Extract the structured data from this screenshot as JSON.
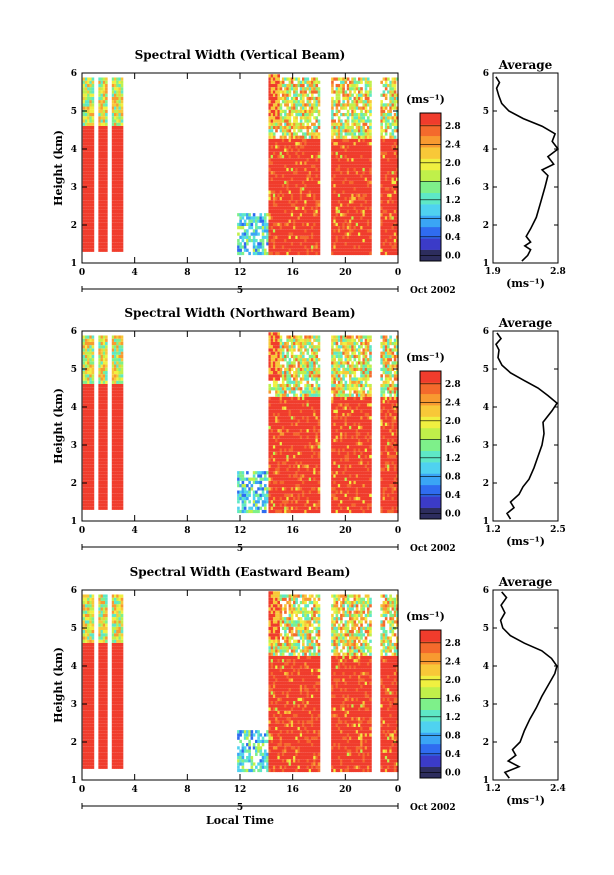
{
  "colorbar": {
    "unit_label": "(ms⁻¹)",
    "ticks": [
      "0.0",
      "0.4",
      "0.8",
      "1.2",
      "1.6",
      "2.0",
      "2.4",
      "2.8"
    ],
    "ticks_north": [
      "0.0",
      "0.4",
      "0.8",
      "1.2",
      "1.6",
      "2.0",
      "2.4",
      "2.8"
    ],
    "colors": [
      "#2d2d5e",
      "#3b3bc8",
      "#2f6cf0",
      "#3aa5f5",
      "#4fd2f0",
      "#5ee8c6",
      "#7ef08a",
      "#c0f04a",
      "#f0f040",
      "#f8c838",
      "#f89a30",
      "#f46a2c",
      "#f03c2c"
    ]
  },
  "chart_data": [
    {
      "type": "heatmap",
      "title": "Spectral Width (Vertical Beam)",
      "ylabel": "Height (km)",
      "xlabel": "",
      "y_ticks": [
        "1",
        "2",
        "3",
        "4",
        "5",
        "6"
      ],
      "ylim": [
        1,
        6
      ],
      "x_ticks": [
        "0",
        "4",
        "8",
        "12",
        "16",
        "20",
        "0"
      ],
      "xlim": [
        0,
        24
      ],
      "date_day": "5",
      "date_label": "Oct 2002",
      "colorbar_range": [
        0.0,
        2.8
      ],
      "data_blocks_hours": [
        [
          0.0,
          3.2
        ],
        [
          11.8,
          24.0
        ]
      ],
      "profile": {
        "title": "Average",
        "xlabel": "(ms⁻¹)",
        "x_ticks": [
          "1.9",
          "2.8"
        ],
        "xlim": [
          1.9,
          2.8
        ],
        "ylim": [
          1,
          6
        ],
        "y_ticks": [
          "1",
          "2",
          "3",
          "4",
          "5",
          "6"
        ],
        "heights": [
          1.05,
          1.2,
          1.35,
          1.45,
          1.55,
          1.7,
          1.9,
          2.2,
          2.6,
          3.0,
          3.3,
          3.45,
          3.6,
          3.8,
          4.0,
          4.2,
          4.4,
          4.6,
          4.8,
          5.0,
          5.2,
          5.4,
          5.6,
          5.75,
          5.9
        ],
        "values": [
          2.3,
          2.38,
          2.42,
          2.34,
          2.42,
          2.36,
          2.42,
          2.5,
          2.56,
          2.62,
          2.66,
          2.58,
          2.74,
          2.66,
          2.8,
          2.72,
          2.76,
          2.58,
          2.32,
          2.12,
          2.02,
          1.98,
          1.95,
          1.99,
          1.94
        ]
      }
    },
    {
      "type": "heatmap",
      "title": "Spectral Width (Northward Beam)",
      "ylabel": "Height (km)",
      "xlabel": "",
      "y_ticks": [
        "1",
        "2",
        "3",
        "4",
        "5",
        "6"
      ],
      "ylim": [
        1,
        6
      ],
      "x_ticks": [
        "0",
        "4",
        "8",
        "12",
        "16",
        "20",
        "0"
      ],
      "xlim": [
        0,
        24
      ],
      "date_day": "5",
      "date_label": "Oct 2002",
      "colorbar_range": [
        0.0,
        2.8
      ],
      "data_blocks_hours": [
        [
          0.0,
          3.2
        ],
        [
          11.8,
          24.0
        ]
      ],
      "profile": {
        "title": "Average",
        "xlabel": "(ms⁻¹)",
        "x_ticks": [
          "1.2",
          "2.5"
        ],
        "xlim": [
          1.2,
          2.5
        ],
        "ylim": [
          1,
          6
        ],
        "y_ticks": [
          "1",
          "2",
          "3",
          "4",
          "5",
          "6"
        ],
        "heights": [
          1.05,
          1.2,
          1.35,
          1.5,
          1.7,
          1.9,
          2.1,
          2.4,
          2.7,
          3.0,
          3.3,
          3.6,
          3.9,
          4.1,
          4.3,
          4.5,
          4.7,
          4.9,
          5.1,
          5.3,
          5.5,
          5.65,
          5.8,
          5.95
        ],
        "values": [
          1.55,
          1.48,
          1.62,
          1.55,
          1.72,
          1.8,
          1.92,
          2.02,
          2.1,
          2.18,
          2.22,
          2.2,
          2.38,
          2.48,
          2.3,
          2.1,
          1.82,
          1.55,
          1.38,
          1.3,
          1.32,
          1.26,
          1.36,
          1.28
        ]
      }
    },
    {
      "type": "heatmap",
      "title": "Spectral Width (Eastward Beam)",
      "ylabel": "Height (km)",
      "xlabel": "Local Time",
      "y_ticks": [
        "1",
        "2",
        "3",
        "4",
        "5",
        "6"
      ],
      "ylim": [
        1,
        6
      ],
      "x_ticks": [
        "0",
        "4",
        "8",
        "12",
        "16",
        "20",
        "0"
      ],
      "xlim": [
        0,
        24
      ],
      "date_day": "5",
      "date_label": "Oct 2002",
      "colorbar_range": [
        0.0,
        2.8
      ],
      "data_blocks_hours": [
        [
          0.0,
          3.2
        ],
        [
          11.8,
          24.0
        ]
      ],
      "profile": {
        "title": "Average",
        "xlabel": "(ms⁻¹)",
        "x_ticks": [
          "1.2",
          "2.4"
        ],
        "xlim": [
          1.2,
          2.4
        ],
        "ylim": [
          1,
          6
        ],
        "y_ticks": [
          "1",
          "2",
          "3",
          "4",
          "5",
          "6"
        ],
        "heights": [
          1.05,
          1.2,
          1.35,
          1.5,
          1.65,
          1.8,
          2.0,
          2.3,
          2.6,
          2.9,
          3.2,
          3.5,
          3.8,
          4.0,
          4.2,
          4.4,
          4.6,
          4.8,
          5.0,
          5.2,
          5.4,
          5.6,
          5.8,
          5.95
        ],
        "values": [
          1.5,
          1.42,
          1.68,
          1.48,
          1.62,
          1.56,
          1.7,
          1.78,
          1.88,
          2.0,
          2.1,
          2.22,
          2.34,
          2.38,
          2.28,
          2.1,
          1.78,
          1.52,
          1.38,
          1.34,
          1.42,
          1.35,
          1.45,
          1.36
        ]
      }
    }
  ]
}
